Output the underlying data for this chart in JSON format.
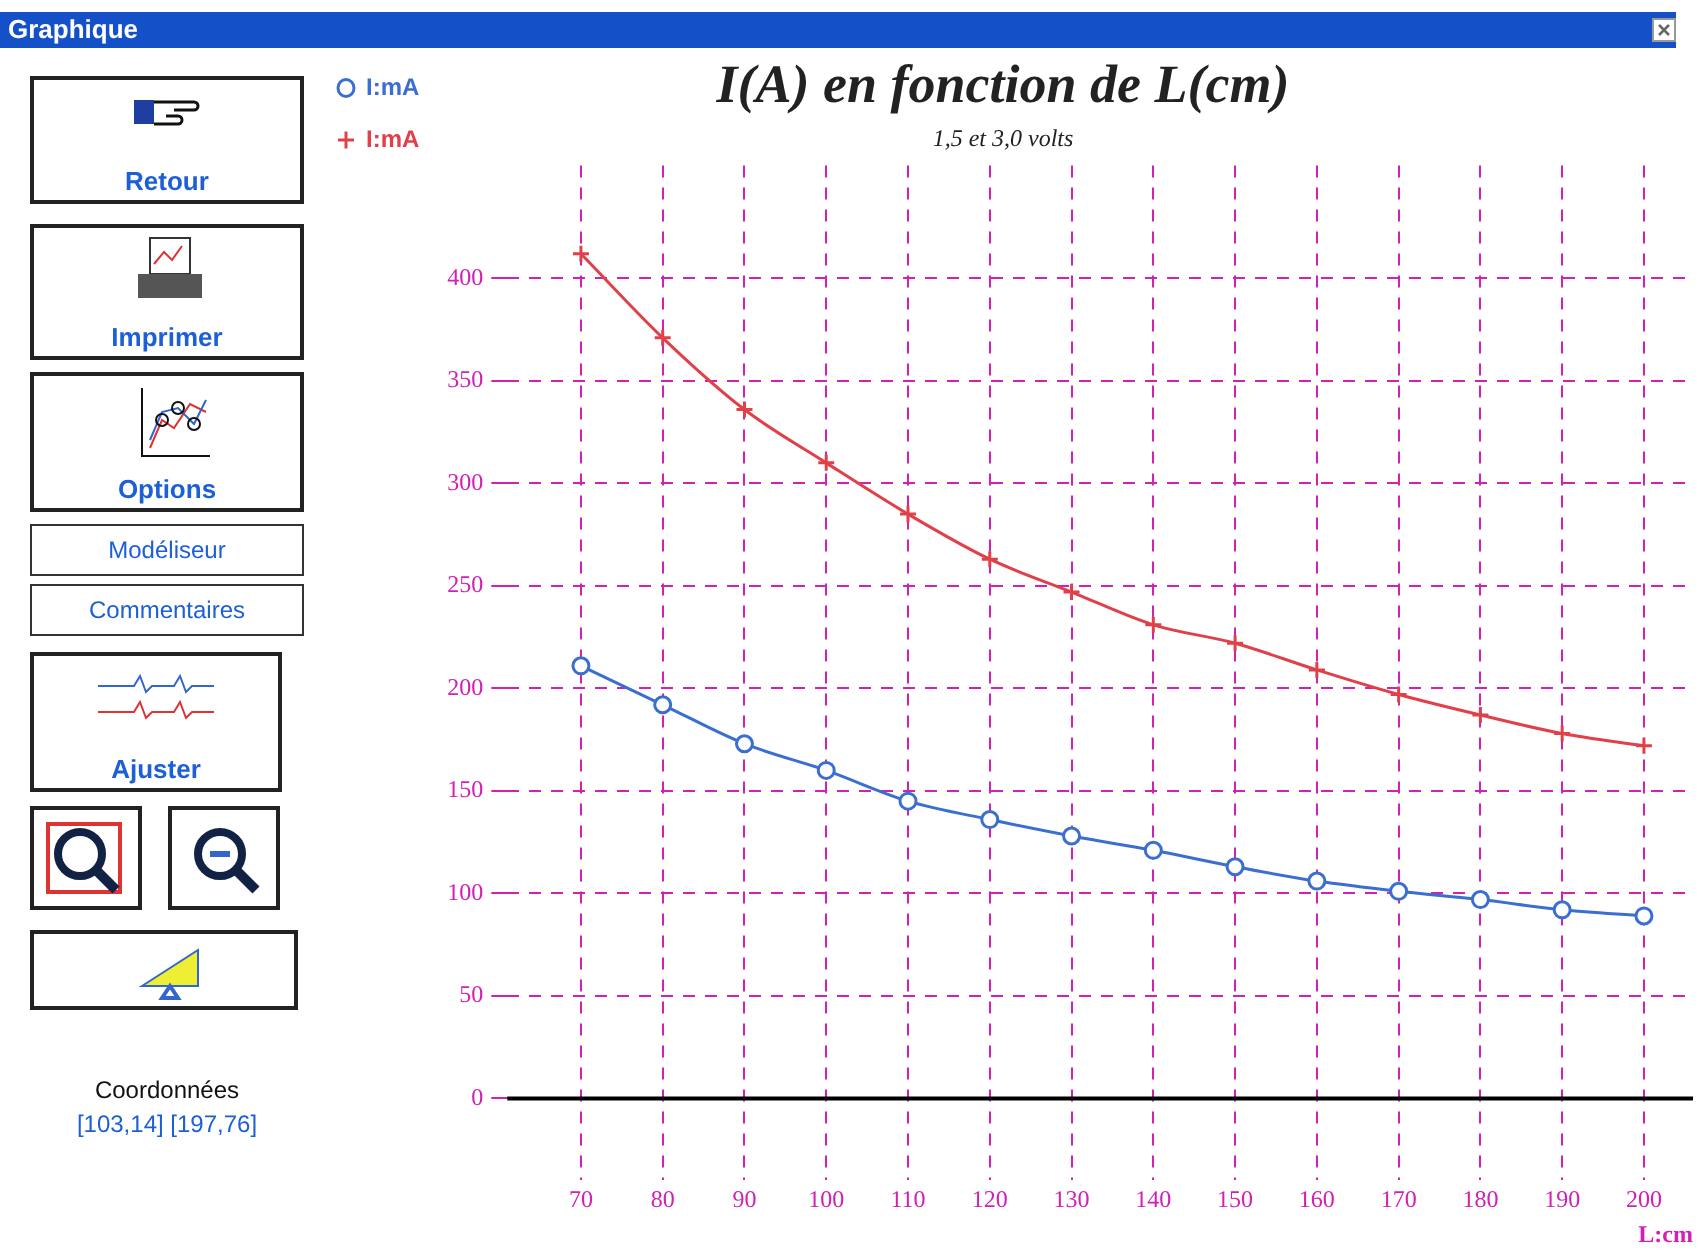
{
  "chart_data": {
    "type": "line",
    "title": "I(A) en fonction de L(cm)",
    "subtitle": "1,5 et 3,0 volts",
    "xlabel": "L:cm",
    "x": [
      70,
      80,
      90,
      100,
      110,
      120,
      130,
      140,
      150,
      160,
      170,
      180,
      190,
      200
    ],
    "series": [
      {
        "name": "I:mA",
        "color": "#3a6fd0",
        "marker": "circle",
        "values": [
          211,
          192,
          173,
          160,
          145,
          136,
          128,
          121,
          113,
          106,
          101,
          97,
          92,
          89
        ]
      },
      {
        "name": "I:mA",
        "color": "#e0404a",
        "marker": "cross",
        "values": [
          412,
          371,
          336,
          310,
          285,
          263,
          247,
          231,
          222,
          209,
          197,
          187,
          178,
          172
        ]
      }
    ],
    "xlim": [
      61,
      206
    ],
    "xticks": [
      70,
      80,
      90,
      100,
      110,
      120,
      130,
      140,
      150,
      160,
      170,
      180,
      190,
      200
    ],
    "ylim": [
      -40,
      455
    ],
    "yticks": [
      0,
      50,
      100,
      150,
      200,
      250,
      300,
      350,
      400
    ],
    "grid": true,
    "legend": "left",
    "ref_lines": [
      {
        "axis": "y",
        "value": 0,
        "color": "#000000"
      }
    ],
    "annotations": [
      "Graphique",
      "Retour",
      "Imprimer",
      "Options",
      "Modéliseur",
      "Commentaires",
      "Ajuster",
      "Coordonnées",
      "[103,14]  [197,76]"
    ]
  }
}
